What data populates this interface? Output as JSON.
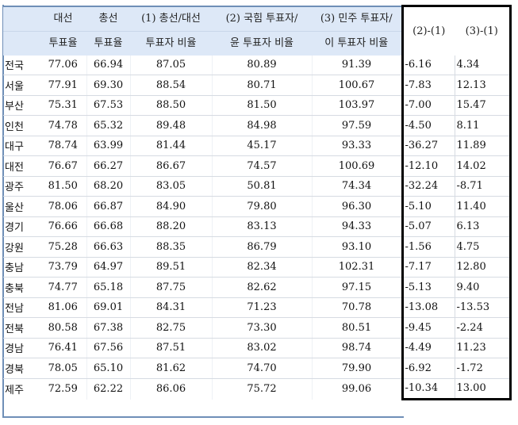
{
  "headers": [
    {
      "line1": "",
      "line2": ""
    },
    {
      "line1": "대선",
      "line2": "투표율"
    },
    {
      "line1": "총선",
      "line2": "투표율"
    },
    {
      "line1": "(1) 총선/대선",
      "line2": "투표자 비율"
    },
    {
      "line1": "(2) 국힘 투표자/",
      "line2": "윤 투표자 비율"
    },
    {
      "line1": "(3) 민주 투표자/",
      "line2": "이 투표자 비율"
    },
    {
      "line1": "(2)-(1)",
      "line2": ""
    },
    {
      "line1": "(3)-(1)",
      "line2": ""
    }
  ],
  "rows": [
    [
      "전국",
      "77.06",
      "66.94",
      "87.05",
      "80.89",
      "91.39",
      "-6.16",
      "4.34"
    ],
    [
      "서울",
      "77.91",
      "69.30",
      "88.54",
      "80.71",
      "100.67",
      "-7.83",
      "12.13"
    ],
    [
      "부산",
      "75.31",
      "67.53",
      "88.50",
      "81.50",
      "103.97",
      "-7.00",
      "15.47"
    ],
    [
      "인천",
      "74.78",
      "65.32",
      "89.48",
      "84.98",
      "97.59",
      "-4.50",
      "8.11"
    ],
    [
      "대구",
      "78.74",
      "63.99",
      "81.44",
      "45.17",
      "93.33",
      "-36.27",
      "11.89"
    ],
    [
      "대전",
      "76.67",
      "66.27",
      "86.67",
      "74.57",
      "100.69",
      "-12.10",
      "14.02"
    ],
    [
      "광주",
      "81.50",
      "68.20",
      "83.05",
      "50.81",
      "74.34",
      "-32.24",
      "-8.71"
    ],
    [
      "울산",
      "78.06",
      "66.87",
      "84.90",
      "79.80",
      "96.30",
      "-5.10",
      "11.40"
    ],
    [
      "경기",
      "76.66",
      "66.68",
      "88.20",
      "83.13",
      "94.33",
      "-5.07",
      "6.13"
    ],
    [
      "강원",
      "75.28",
      "66.63",
      "88.35",
      "86.79",
      "93.10",
      "-1.56",
      "4.75"
    ],
    [
      "충남",
      "73.79",
      "64.97",
      "89.51",
      "82.34",
      "102.31",
      "-7.17",
      "12.80"
    ],
    [
      "충북",
      "74.77",
      "65.18",
      "87.75",
      "82.62",
      "97.15",
      "-5.13",
      "9.40"
    ],
    [
      "전남",
      "81.06",
      "69.01",
      "84.31",
      "71.23",
      "70.78",
      "-13.08",
      "-13.53"
    ],
    [
      "전북",
      "80.58",
      "67.38",
      "82.75",
      "73.30",
      "80.51",
      "-9.45",
      "-2.24"
    ],
    [
      "경남",
      "76.41",
      "67.56",
      "87.51",
      "83.02",
      "98.74",
      "-4.49",
      "11.23"
    ],
    [
      "경북",
      "78.05",
      "65.10",
      "81.62",
      "74.70",
      "79.90",
      "-6.92",
      "-1.72"
    ],
    [
      "제주",
      "72.59",
      "62.22",
      "86.06",
      "75.72",
      "99.06",
      "-10.34",
      "13.00"
    ]
  ]
}
